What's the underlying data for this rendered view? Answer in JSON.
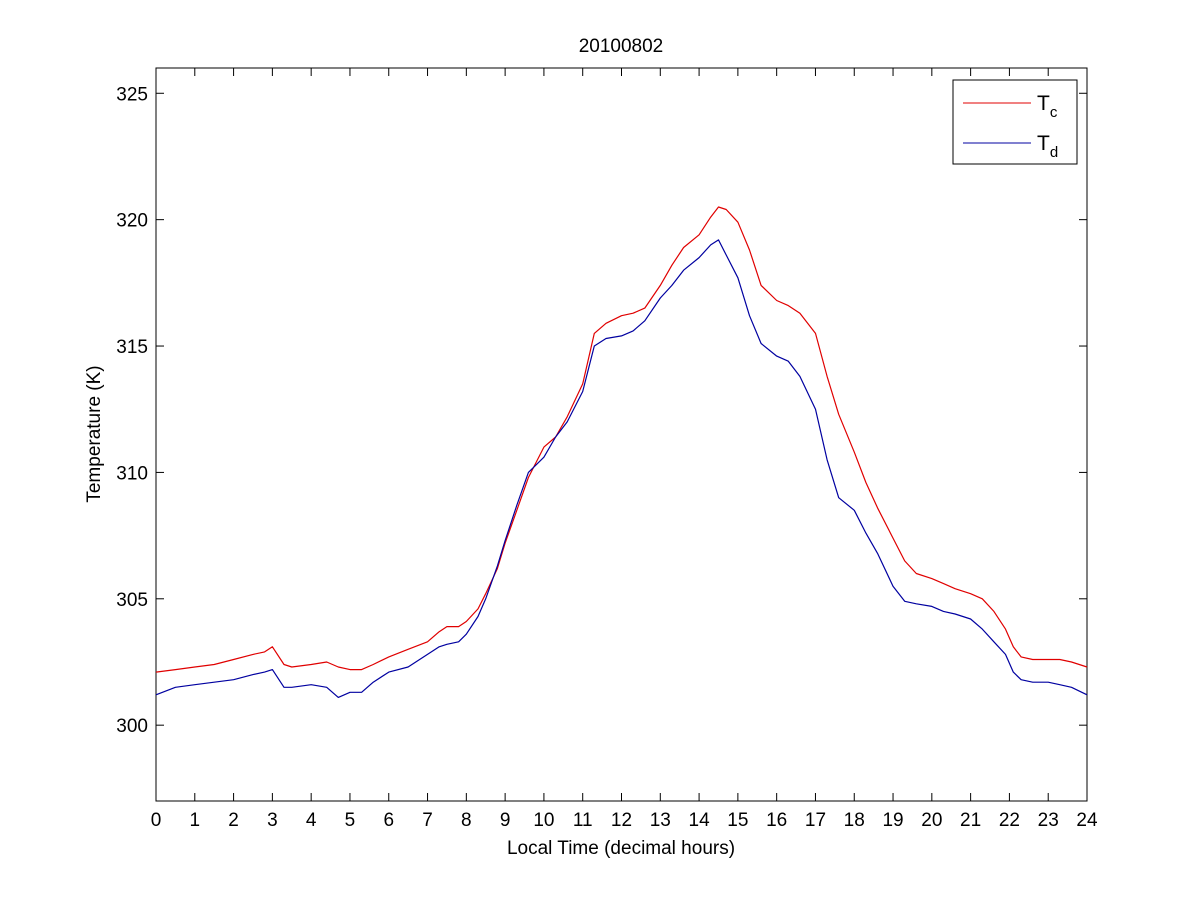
{
  "chart_data": {
    "type": "line",
    "title": "20100802",
    "xlabel": "Local Time (decimal hours)",
    "ylabel": "Temperature (K)",
    "xlim": [
      0,
      24
    ],
    "ylim": [
      297,
      326
    ],
    "xticks": [
      0,
      1,
      2,
      3,
      4,
      5,
      6,
      7,
      8,
      9,
      10,
      11,
      12,
      13,
      14,
      15,
      16,
      17,
      18,
      19,
      20,
      21,
      22,
      23,
      24
    ],
    "yticks": [
      300,
      305,
      310,
      315,
      320,
      325
    ],
    "grid": false,
    "legend_position": "top-right",
    "series": [
      {
        "name": "Tc",
        "legend_main": "T",
        "legend_sub": "c",
        "color": "#e00000",
        "x": [
          0,
          0.5,
          1,
          1.5,
          2,
          2.5,
          2.8,
          3,
          3.3,
          3.5,
          4,
          4.4,
          4.7,
          5,
          5.3,
          5.6,
          6,
          6.5,
          7,
          7.3,
          7.5,
          7.8,
          8,
          8.3,
          8.5,
          8.8,
          9,
          9.3,
          9.6,
          10,
          10.3,
          10.6,
          11,
          11.3,
          11.6,
          12,
          12.3,
          12.6,
          13,
          13.3,
          13.6,
          14,
          14.3,
          14.5,
          14.7,
          15,
          15.3,
          15.6,
          16,
          16.3,
          16.6,
          17,
          17.3,
          17.6,
          18,
          18.3,
          18.6,
          19,
          19.3,
          19.6,
          20,
          20.3,
          20.6,
          21,
          21.3,
          21.6,
          21.9,
          22.1,
          22.3,
          22.6,
          23,
          23.3,
          23.6,
          24
        ],
        "y": [
          302.1,
          302.2,
          302.3,
          302.4,
          302.6,
          302.8,
          302.9,
          303.1,
          302.4,
          302.3,
          302.4,
          302.5,
          302.3,
          302.2,
          302.2,
          302.4,
          302.7,
          303.0,
          303.3,
          303.7,
          303.9,
          303.9,
          304.1,
          304.6,
          305.2,
          306.2,
          307.2,
          308.5,
          309.8,
          311.0,
          311.4,
          312.2,
          313.5,
          315.5,
          315.9,
          316.2,
          316.3,
          316.5,
          317.4,
          318.2,
          318.9,
          319.4,
          320.1,
          320.5,
          320.4,
          319.9,
          318.8,
          317.4,
          316.8,
          316.6,
          316.3,
          315.5,
          313.8,
          312.3,
          310.8,
          309.6,
          308.6,
          307.4,
          306.5,
          306.0,
          305.8,
          305.6,
          305.4,
          305.2,
          305.0,
          304.5,
          303.8,
          303.1,
          302.7,
          302.6,
          302.6,
          302.6,
          302.5,
          302.3
        ]
      },
      {
        "name": "Td",
        "legend_main": "T",
        "legend_sub": "d",
        "color": "#0000a0",
        "x": [
          0,
          0.5,
          1,
          1.5,
          2,
          2.5,
          2.8,
          3,
          3.3,
          3.5,
          4,
          4.4,
          4.7,
          5,
          5.3,
          5.6,
          6,
          6.5,
          7,
          7.3,
          7.5,
          7.8,
          8,
          8.3,
          8.5,
          8.8,
          9,
          9.3,
          9.6,
          10,
          10.3,
          10.6,
          11,
          11.3,
          11.6,
          12,
          12.3,
          12.6,
          13,
          13.3,
          13.6,
          14,
          14.3,
          14.5,
          14.7,
          15,
          15.3,
          15.6,
          16,
          16.3,
          16.6,
          17,
          17.3,
          17.6,
          18,
          18.3,
          18.6,
          19,
          19.3,
          19.6,
          20,
          20.3,
          20.6,
          21,
          21.3,
          21.6,
          21.9,
          22.1,
          22.3,
          22.6,
          23,
          23.3,
          23.6,
          24
        ],
        "y": [
          301.2,
          301.5,
          301.6,
          301.7,
          301.8,
          302.0,
          302.1,
          302.2,
          301.5,
          301.5,
          301.6,
          301.5,
          301.1,
          301.3,
          301.3,
          301.7,
          302.1,
          302.3,
          302.8,
          303.1,
          303.2,
          303.3,
          303.6,
          304.3,
          305.0,
          306.3,
          307.3,
          308.7,
          310.0,
          310.6,
          311.4,
          312.0,
          313.2,
          315.0,
          315.3,
          315.4,
          315.6,
          316.0,
          316.9,
          317.4,
          318.0,
          318.5,
          319.0,
          319.2,
          318.6,
          317.7,
          316.2,
          315.1,
          314.6,
          314.4,
          313.8,
          312.5,
          310.5,
          309.0,
          308.5,
          307.6,
          306.8,
          305.5,
          304.9,
          304.8,
          304.7,
          304.5,
          304.4,
          304.2,
          303.8,
          303.3,
          302.8,
          302.1,
          301.8,
          301.7,
          301.7,
          301.6,
          301.5,
          301.2
        ]
      }
    ]
  }
}
